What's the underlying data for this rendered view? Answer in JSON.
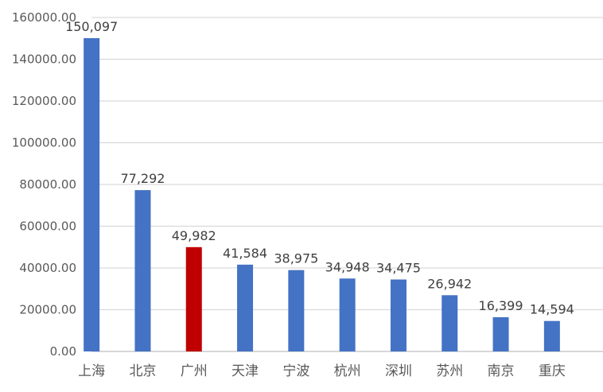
{
  "chart_data": {
    "type": "bar",
    "categories": [
      "上海",
      "北京",
      "广州",
      "天津",
      "宁波",
      "杭州",
      "深圳",
      "苏州",
      "南京",
      "重庆"
    ],
    "values": [
      150097,
      77292,
      49982,
      41584,
      38975,
      34948,
      34475,
      26942,
      16399,
      14594
    ],
    "data_labels": [
      "150,097",
      "77,292",
      "49,982",
      "41,584",
      "38,975",
      "34,948",
      "34,475",
      "26,942",
      "16,399",
      "14,594"
    ],
    "ylim": [
      0,
      160000
    ],
    "yticks": [
      0,
      20000,
      40000,
      60000,
      80000,
      100000,
      120000,
      140000,
      160000
    ],
    "ytick_labels": [
      "0.00",
      "20000.00",
      "40000.00",
      "60000.00",
      "80000.00",
      "100000.00",
      "120000.00",
      "140000.00",
      "160000.00"
    ],
    "grid": true,
    "legend": false,
    "colors": {
      "default_bar": "#4472C4",
      "highlight_bar": "#C00000"
    },
    "highlight_category": "广州"
  }
}
